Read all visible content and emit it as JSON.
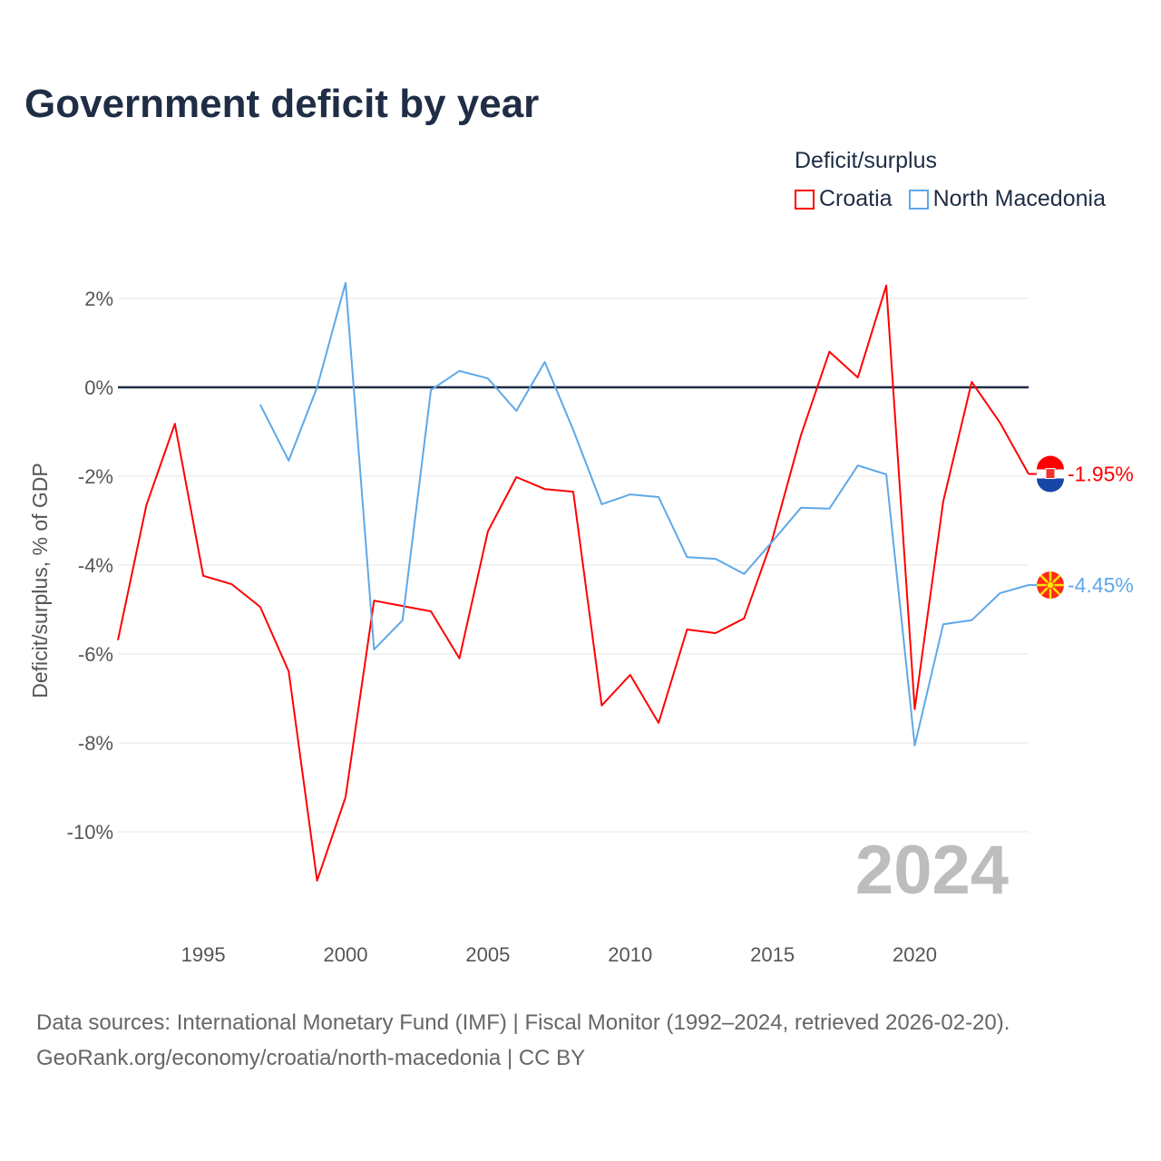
{
  "title": "Government deficit by year",
  "legend": {
    "title": "Deficit/surplus",
    "items": [
      {
        "label": "Croatia",
        "color": "#ff0000"
      },
      {
        "label": "North Macedonia",
        "color": "#5ea8e8"
      }
    ]
  },
  "chart_data": {
    "type": "line",
    "title": "Government deficit by year",
    "xlabel": "",
    "ylabel": "Deficit/surplus, % of GDP",
    "xlim": [
      1992,
      2024
    ],
    "ylim": [
      -12,
      2.5
    ],
    "x_ticks": [
      "1995",
      "2000",
      "2005",
      "2010",
      "2015",
      "2020"
    ],
    "y_ticks": [
      {
        "v": 2,
        "label": "2%"
      },
      {
        "v": 0,
        "label": "0%"
      },
      {
        "v": -2,
        "label": "-2%"
      },
      {
        "v": -4,
        "label": "-4%"
      },
      {
        "v": -6,
        "label": "-6%"
      },
      {
        "v": -8,
        "label": "-8%"
      },
      {
        "v": -10,
        "label": "-10%"
      }
    ],
    "watermark_year": "2024",
    "series": [
      {
        "name": "Croatia",
        "color": "#ff0000",
        "start": 1992,
        "end_label": "-1.95%",
        "values": [
          -5.69,
          -2.65,
          -0.82,
          -4.24,
          -4.43,
          -4.94,
          -6.39,
          -11.1,
          -9.22,
          -4.8,
          -4.92,
          -5.04,
          -6.1,
          -3.24,
          -2.02,
          -2.29,
          -2.35,
          -7.16,
          -6.47,
          -7.55,
          -5.45,
          -5.53,
          -5.2,
          -3.41,
          -1.08,
          0.8,
          0.22,
          2.29,
          -7.24,
          -2.57,
          0.12,
          -0.8,
          -1.95
        ]
      },
      {
        "name": "North Macedonia",
        "color": "#5ea8e8",
        "start": 1997,
        "end_label": "-4.45%",
        "values": [
          -0.39,
          -1.65,
          0.0,
          2.35,
          -5.9,
          -5.24,
          -0.06,
          0.37,
          0.2,
          -0.53,
          0.57,
          -0.96,
          -2.63,
          -2.41,
          -2.47,
          -3.82,
          -3.86,
          -4.2,
          -3.47,
          -2.71,
          -2.73,
          -1.76,
          -1.96,
          -8.06,
          -5.33,
          -5.24,
          -4.63,
          -4.45
        ]
      }
    ]
  },
  "footer": {
    "line1": "Data sources: International Monetary Fund (IMF) | Fiscal Monitor (1992–2024, retrieved 2026-02-20).",
    "line2": "GeoRank.org/economy/croatia/north-macedonia | CC BY"
  }
}
